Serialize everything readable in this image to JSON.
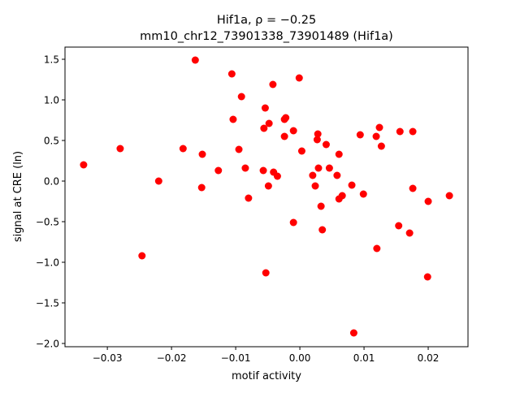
{
  "chart_data": {
    "type": "scatter",
    "title": "Hif1a, ρ = −0.25",
    "subtitle": "mm10_chr12_73901338_73901489 (Hif1a)",
    "xlabel": "motif activity",
    "ylabel": "signal at CRE (ln)",
    "xlim": [
      -0.0366,
      0.0262
    ],
    "ylim": [
      -2.04,
      1.65
    ],
    "grid": false,
    "marker_color": "#ff0000",
    "xticks": [
      -0.03,
      -0.02,
      -0.01,
      0.0,
      0.01,
      0.02
    ],
    "xtick_labels": [
      "−0.03",
      "−0.02",
      "−0.01",
      "0.00",
      "0.01",
      "0.02"
    ],
    "yticks": [
      1.5,
      1.0,
      0.5,
      0.0,
      -0.5,
      -1.0,
      -1.5,
      -2.0
    ],
    "ytick_labels": [
      "1.5",
      "1.0",
      "0.5",
      "0.0",
      "−0.5",
      "−1.0",
      "−1.5",
      "−2.0"
    ],
    "points": [
      [
        -0.0337,
        0.2
      ],
      [
        -0.028,
        0.4
      ],
      [
        -0.0246,
        -0.92
      ],
      [
        -0.022,
        0.0
      ],
      [
        -0.0182,
        0.4
      ],
      [
        -0.0163,
        1.49
      ],
      [
        -0.0152,
        0.33
      ],
      [
        -0.0153,
        -0.08
      ],
      [
        -0.0127,
        0.13
      ],
      [
        -0.0106,
        1.32
      ],
      [
        -0.0104,
        0.76
      ],
      [
        -0.0095,
        0.39
      ],
      [
        -0.0091,
        1.04
      ],
      [
        -0.0085,
        0.16
      ],
      [
        -0.008,
        -0.21
      ],
      [
        -0.0057,
        0.13
      ],
      [
        -0.0056,
        0.65
      ],
      [
        -0.0054,
        0.9
      ],
      [
        -0.0053,
        -1.13
      ],
      [
        -0.0048,
        0.71
      ],
      [
        -0.0049,
        -0.06
      ],
      [
        -0.0042,
        1.19
      ],
      [
        -0.0041,
        0.11
      ],
      [
        -0.0035,
        0.06
      ],
      [
        -0.0024,
        0.55
      ],
      [
        -0.0024,
        0.76
      ],
      [
        -0.0022,
        0.78
      ],
      [
        -0.001,
        0.62
      ],
      [
        -0.001,
        -0.51
      ],
      [
        -0.0001,
        1.27
      ],
      [
        0.0003,
        0.37
      ],
      [
        0.002,
        0.07
      ],
      [
        0.0024,
        -0.06
      ],
      [
        0.0027,
        0.51
      ],
      [
        0.0028,
        0.58
      ],
      [
        0.0029,
        0.16
      ],
      [
        0.0033,
        -0.31
      ],
      [
        0.0035,
        -0.6
      ],
      [
        0.0041,
        0.45
      ],
      [
        0.0046,
        0.16
      ],
      [
        0.0058,
        0.07
      ],
      [
        0.0061,
        0.33
      ],
      [
        0.0061,
        -0.22
      ],
      [
        0.0066,
        -0.18
      ],
      [
        0.0081,
        -0.05
      ],
      [
        0.0084,
        -1.87
      ],
      [
        0.0094,
        0.57
      ],
      [
        0.0099,
        -0.16
      ],
      [
        0.0119,
        0.55
      ],
      [
        0.012,
        -0.83
      ],
      [
        0.0124,
        0.66
      ],
      [
        0.0127,
        0.43
      ],
      [
        0.0154,
        -0.55
      ],
      [
        0.0156,
        0.61
      ],
      [
        0.0171,
        -0.64
      ],
      [
        0.0176,
        0.61
      ],
      [
        0.0176,
        -0.09
      ],
      [
        0.02,
        -0.25
      ],
      [
        0.0199,
        -1.18
      ],
      [
        0.0233,
        -0.18
      ]
    ]
  }
}
